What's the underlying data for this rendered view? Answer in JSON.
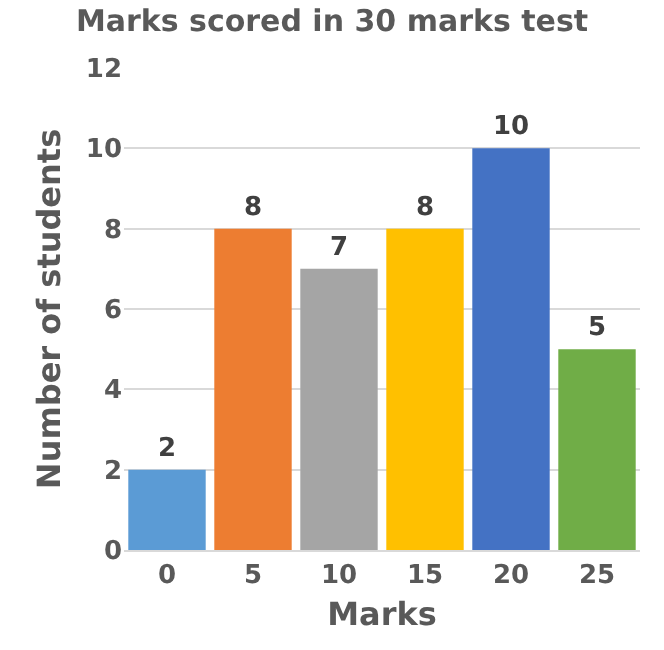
{
  "chart_data": {
    "type": "bar",
    "title": "Marks scored in 30 marks test",
    "xlabel": "Marks",
    "ylabel": "Number of students",
    "categories": [
      "0",
      "5",
      "10",
      "15",
      "20",
      "25"
    ],
    "values": [
      2,
      8,
      7,
      8,
      10,
      5
    ],
    "colors": [
      "#5b9bd5",
      "#ed7d31",
      "#a5a5a5",
      "#ffc000",
      "#4472c4",
      "#70ad47"
    ],
    "ylim": [
      0,
      12
    ],
    "yticks": [
      0,
      2,
      4,
      6,
      8,
      10,
      12
    ],
    "grid": "y",
    "data_labels": true
  }
}
